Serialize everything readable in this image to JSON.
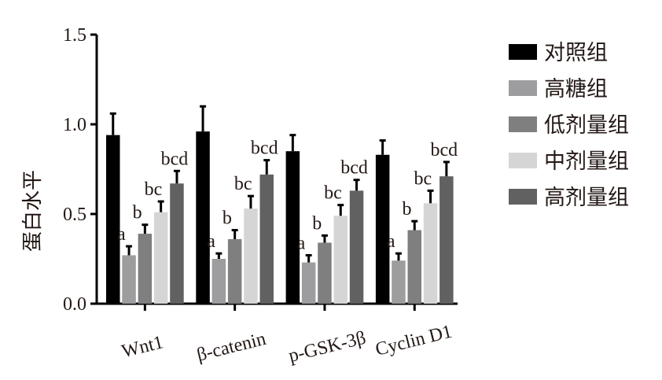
{
  "chart_data": {
    "type": "bar",
    "title": "",
    "xlabel": "",
    "ylabel": "蛋白水平",
    "ylim": [
      0,
      1.5
    ],
    "yticks": [
      0.0,
      0.5,
      1.0,
      1.5
    ],
    "ytick_labels": [
      "0.0",
      "0.5",
      "1.0",
      "1.5"
    ],
    "grid": false,
    "legend_position": "right",
    "categories": [
      "Wnt1",
      "β-catenin",
      "p-GSK-3β",
      "Cyclin D1"
    ],
    "series": [
      {
        "name": "对照组",
        "color": "#000000",
        "values": [
          0.94,
          0.96,
          0.85,
          0.83
        ],
        "errors": [
          0.12,
          0.14,
          0.09,
          0.08
        ],
        "labels": [
          "",
          "",
          "",
          ""
        ]
      },
      {
        "name": "高糖组",
        "color": "#9d9da0",
        "values": [
          0.27,
          0.25,
          0.23,
          0.24
        ],
        "errors": [
          0.05,
          0.03,
          0.04,
          0.04
        ],
        "labels": [
          "a",
          "a",
          "a",
          "a"
        ]
      },
      {
        "name": "低剂量组",
        "color": "#7f7f7f",
        "values": [
          0.39,
          0.36,
          0.34,
          0.41
        ],
        "errors": [
          0.05,
          0.05,
          0.04,
          0.05
        ],
        "labels": [
          "b",
          "b",
          "b",
          "b"
        ]
      },
      {
        "name": "中剂量组",
        "color": "#d5d5d5",
        "values": [
          0.51,
          0.53,
          0.49,
          0.56
        ],
        "errors": [
          0.06,
          0.07,
          0.06,
          0.07
        ],
        "labels": [
          "bc",
          "bc",
          "bc",
          "bc"
        ]
      },
      {
        "name": "高剂量组",
        "color": "#616161",
        "values": [
          0.67,
          0.72,
          0.63,
          0.71
        ],
        "errors": [
          0.07,
          0.08,
          0.06,
          0.08
        ],
        "labels": [
          "bcd",
          "bcd",
          "bcd",
          "bcd"
        ]
      }
    ]
  }
}
